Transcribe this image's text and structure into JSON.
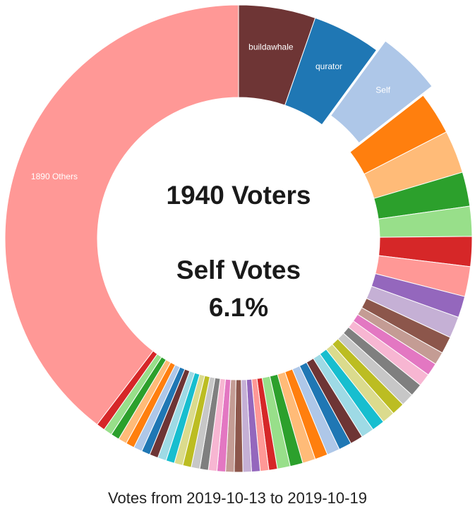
{
  "chart_data": {
    "type": "pie",
    "style": "donut",
    "unit": "voters",
    "total_voters": 1940,
    "center_title": "1940 Voters",
    "center_subtitle_line1": "Self Votes",
    "center_subtitle_line2": "6.1%",
    "caption": "Votes from 2019-10-13 to 2019-10-19",
    "exploded_slice": "Self",
    "slices": [
      {
        "label": "buildawhale",
        "value": 18,
        "color": "#6e3535",
        "show_label": true
      },
      {
        "label": "qurator",
        "value": 16,
        "color": "#1f77b4",
        "show_label": true
      },
      {
        "label": "Self",
        "value": 15,
        "color": "#aec7e8",
        "show_label": true
      },
      {
        "label": "",
        "value": 10,
        "color": "#ff7f0e",
        "show_label": false
      },
      {
        "label": "",
        "value": 10,
        "color": "#ffbb78",
        "show_label": false
      },
      {
        "label": "",
        "value": 8,
        "color": "#2ca02c",
        "show_label": false
      },
      {
        "label": "",
        "value": 7,
        "color": "#98df8a",
        "show_label": false
      },
      {
        "label": "",
        "value": 7,
        "color": "#d62728",
        "show_label": false
      },
      {
        "label": "",
        "value": 7,
        "color": "#ff9896",
        "show_label": false
      },
      {
        "label": "",
        "value": 5,
        "color": "#9467bd",
        "show_label": false
      },
      {
        "label": "",
        "value": 5,
        "color": "#c5b0d5",
        "show_label": false
      },
      {
        "label": "",
        "value": 4,
        "color": "#8c564b",
        "show_label": false
      },
      {
        "label": "",
        "value": 3,
        "color": "#c49c94",
        "show_label": false
      },
      {
        "label": "",
        "value": 3,
        "color": "#e377c2",
        "show_label": false
      },
      {
        "label": "",
        "value": 3,
        "color": "#f7b6d2",
        "show_label": false
      },
      {
        "label": "",
        "value": 3,
        "color": "#7f7f7f",
        "show_label": false
      },
      {
        "label": "",
        "value": 3,
        "color": "#c7c7c7",
        "show_label": false
      },
      {
        "label": "",
        "value": 3,
        "color": "#bcbd22",
        "show_label": false
      },
      {
        "label": "",
        "value": 3,
        "color": "#dbdb8d",
        "show_label": false
      },
      {
        "label": "",
        "value": 3,
        "color": "#17becf",
        "show_label": false
      },
      {
        "label": "",
        "value": 3,
        "color": "#9edae5",
        "show_label": false
      },
      {
        "label": "",
        "value": 3,
        "color": "#6e3535",
        "show_label": false
      },
      {
        "label": "",
        "value": 3,
        "color": "#1f77b4",
        "show_label": false
      },
      {
        "label": "",
        "value": 3,
        "color": "#aec7e8",
        "show_label": false
      },
      {
        "label": "",
        "value": 3,
        "color": "#ff7f0e",
        "show_label": false
      },
      {
        "label": "",
        "value": 3,
        "color": "#ffbb78",
        "show_label": false
      },
      {
        "label": "",
        "value": 3,
        "color": "#2ca02c",
        "show_label": false
      },
      {
        "label": "",
        "value": 3,
        "color": "#98df8a",
        "show_label": false
      },
      {
        "label": "",
        "value": 2,
        "color": "#d62728",
        "show_label": false
      },
      {
        "label": "",
        "value": 2,
        "color": "#ff9896",
        "show_label": false
      },
      {
        "label": "",
        "value": 2,
        "color": "#9467bd",
        "show_label": false
      },
      {
        "label": "",
        "value": 2,
        "color": "#c5b0d5",
        "show_label": false
      },
      {
        "label": "",
        "value": 2,
        "color": "#8c564b",
        "show_label": false
      },
      {
        "label": "",
        "value": 2,
        "color": "#c49c94",
        "show_label": false
      },
      {
        "label": "",
        "value": 2,
        "color": "#e377c2",
        "show_label": false
      },
      {
        "label": "",
        "value": 2,
        "color": "#f7b6d2",
        "show_label": false
      },
      {
        "label": "",
        "value": 2,
        "color": "#7f7f7f",
        "show_label": false
      },
      {
        "label": "",
        "value": 2,
        "color": "#c7c7c7",
        "show_label": false
      },
      {
        "label": "",
        "value": 2,
        "color": "#bcbd22",
        "show_label": false
      },
      {
        "label": "",
        "value": 2,
        "color": "#dbdb8d",
        "show_label": false
      },
      {
        "label": "",
        "value": 2,
        "color": "#17becf",
        "show_label": false
      },
      {
        "label": "",
        "value": 2,
        "color": "#9edae5",
        "show_label": false
      },
      {
        "label": "",
        "value": 2,
        "color": "#6e3535",
        "show_label": false
      },
      {
        "label": "",
        "value": 2,
        "color": "#1f77b4",
        "show_label": false
      },
      {
        "label": "",
        "value": 2,
        "color": "#aec7e8",
        "show_label": false
      },
      {
        "label": "",
        "value": 2,
        "color": "#ff7f0e",
        "show_label": false
      },
      {
        "label": "",
        "value": 2,
        "color": "#ffbb78",
        "show_label": false
      },
      {
        "label": "",
        "value": 2,
        "color": "#2ca02c",
        "show_label": false
      },
      {
        "label": "",
        "value": 2,
        "color": "#98df8a",
        "show_label": false
      },
      {
        "label": "",
        "value": 2,
        "color": "#d62728",
        "show_label": false
      },
      {
        "label": "1890 Others",
        "value": 134,
        "color": "#ff9896",
        "show_label": true
      }
    ]
  }
}
